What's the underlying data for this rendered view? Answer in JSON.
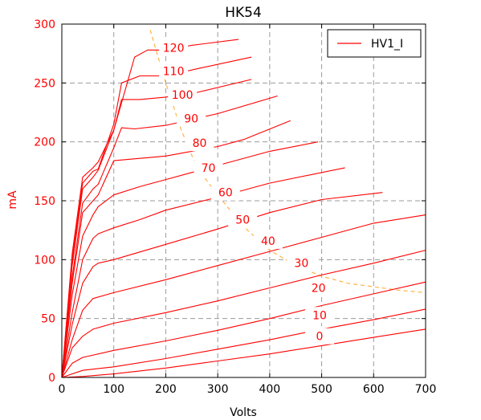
{
  "chart_data": {
    "type": "line",
    "title": "HK54",
    "xlabel": "Volts",
    "ylabel": "mA",
    "xlim": [
      0,
      700
    ],
    "ylim": [
      0,
      300
    ],
    "x_ticks": [
      "0",
      "100",
      "200",
      "300",
      "400",
      "500",
      "600",
      "700"
    ],
    "y_ticks": [
      "0",
      "50",
      "100",
      "150",
      "200",
      "250",
      "300"
    ],
    "grid": true,
    "legend": {
      "position": "top-right",
      "entries": [
        "HV1_I"
      ]
    },
    "colors": {
      "curves": "#ff0000",
      "load_line": "#ffb347",
      "tick_labels_y": "#ff0000",
      "axis": "#000000"
    },
    "series": [
      {
        "curve_label": "0",
        "x": [
          0,
          40,
          100,
          200,
          300,
          400,
          500,
          600,
          700
        ],
        "y": [
          0,
          0.8,
          3,
          8,
          14,
          20,
          27,
          34,
          41
        ]
      },
      {
        "curve_label": "10",
        "x": [
          0,
          40,
          100,
          200,
          300,
          400,
          500,
          600,
          700
        ],
        "y": [
          0,
          6,
          9,
          16,
          24,
          32,
          41,
          49,
          58
        ]
      },
      {
        "curve_label": "20",
        "x": [
          0,
          20,
          40,
          100,
          200,
          300,
          400,
          500,
          600,
          700
        ],
        "y": [
          0,
          12,
          17,
          23,
          31,
          40,
          50,
          61,
          71,
          81
        ]
      },
      {
        "curve_label": "30",
        "x": [
          0,
          20,
          40,
          60,
          100,
          200,
          300,
          400,
          500,
          600,
          700
        ],
        "y": [
          0,
          25,
          35,
          41,
          46,
          55,
          65,
          76,
          87,
          97,
          108
        ]
      },
      {
        "curve_label": "40",
        "x": [
          0,
          20,
          40,
          60,
          100,
          200,
          300,
          400,
          500,
          600,
          700
        ],
        "y": [
          0,
          32,
          57,
          67,
          72,
          83,
          95,
          107,
          119,
          131,
          138
        ]
      },
      {
        "curve_label": "50",
        "x": [
          0,
          20,
          40,
          60,
          70,
          100,
          200,
          300,
          400,
          500,
          617
        ],
        "y": [
          0,
          45,
          80,
          94,
          97,
          100,
          113,
          126,
          140,
          151,
          157
        ]
      },
      {
        "curve_label": "60",
        "x": [
          0,
          20,
          40,
          60,
          70,
          100,
          150,
          200,
          300,
          400,
          545
        ],
        "y": [
          0,
          55,
          100,
          118,
          122,
          127,
          134,
          142,
          153,
          165,
          178
        ]
      },
      {
        "curve_label": "70",
        "x": [
          0,
          20,
          40,
          60,
          70,
          100,
          150,
          200,
          300,
          400,
          493
        ],
        "y": [
          0,
          70,
          120,
          138,
          145,
          155,
          162,
          168,
          180,
          192,
          200
        ]
      },
      {
        "curve_label": "80",
        "x": [
          0,
          20,
          40,
          60,
          70,
          100,
          150,
          200,
          300,
          350,
          440
        ],
        "y": [
          0,
          80,
          140,
          150,
          155,
          184,
          186,
          188,
          196,
          202,
          218
        ]
      },
      {
        "curve_label": "90",
        "x": [
          0,
          20,
          40,
          60,
          70,
          100,
          115,
          140,
          200,
          300,
          415
        ],
        "y": [
          0,
          85,
          148,
          160,
          164,
          195,
          212,
          211,
          214,
          224,
          239
        ]
      },
      {
        "curve_label": "100",
        "x": [
          0,
          20,
          40,
          60,
          70,
          100,
          115,
          150,
          200,
          260,
          365
        ],
        "y": [
          0,
          95,
          160,
          170,
          176,
          210,
          236,
          236,
          238,
          242,
          253
        ]
      },
      {
        "curve_label": "110",
        "x": [
          0,
          20,
          40,
          60,
          70,
          100,
          115,
          150,
          200,
          260,
          365
        ],
        "y": [
          0,
          100,
          165,
          175,
          177,
          215,
          250,
          256,
          256,
          262,
          272
        ]
      },
      {
        "curve_label": "120",
        "x": [
          0,
          20,
          40,
          60,
          70,
          100,
          140,
          165,
          200,
          250,
          340
        ],
        "y": [
          0,
          105,
          170,
          178,
          183,
          210,
          272,
          278,
          278,
          282,
          287
        ]
      }
    ],
    "load_line": {
      "x": [
        170,
        200,
        230,
        260,
        300,
        350,
        400,
        450,
        500,
        550,
        600,
        650,
        700
      ],
      "y": [
        295,
        250,
        210,
        178,
        155,
        128,
        108,
        95,
        86,
        80,
        77,
        74,
        72
      ]
    }
  }
}
